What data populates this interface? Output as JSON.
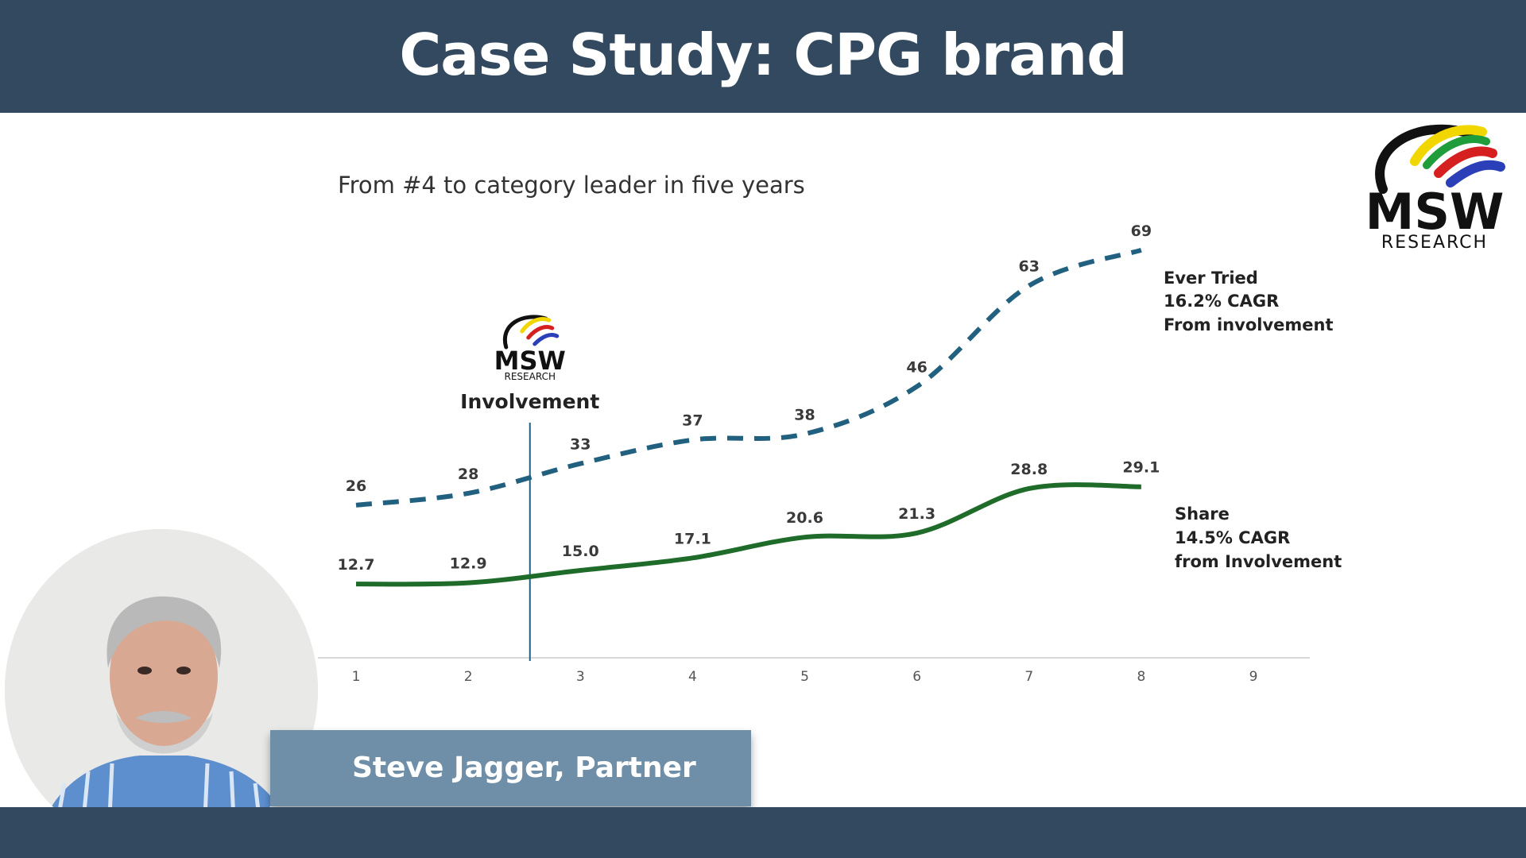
{
  "header": {
    "title": "Case Study: CPG brand"
  },
  "subtitle": "From #4 to category leader in five years",
  "logo": {
    "line1": "MSW",
    "line2": "RESEARCH"
  },
  "presenter": {
    "name": "Steve Jagger, Partner"
  },
  "colors": {
    "header_bg": "#32495f",
    "ever_tried": "#21607f",
    "share": "#1e6b2a",
    "name_plate": "#6f8ea8",
    "marker": "#21607f"
  },
  "chart_data": {
    "type": "line",
    "x": [
      1,
      2,
      3,
      4,
      5,
      6,
      7,
      8
    ],
    "x_ticks": [
      "1",
      "2",
      "3",
      "4",
      "5",
      "6",
      "7",
      "8",
      "9"
    ],
    "xlim": [
      1,
      9
    ],
    "ylim": [
      0,
      75
    ],
    "grid": false,
    "series": [
      {
        "name": "Ever Tried",
        "style": "dashed",
        "values": [
          26,
          28,
          33,
          37,
          38,
          46,
          63,
          69
        ],
        "labels": [
          "26",
          "28",
          "33",
          "37",
          "38",
          "46",
          "63",
          "69"
        ],
        "annotation": [
          "Ever Tried",
          "16.2% CAGR",
          "From involvement"
        ]
      },
      {
        "name": "Share",
        "style": "solid",
        "values": [
          12.7,
          12.9,
          15.0,
          17.1,
          20.6,
          21.3,
          28.8,
          29.1
        ],
        "labels": [
          "12.7",
          "12.9",
          "15.0",
          "17.1",
          "20.6",
          "21.3",
          "28.8",
          "29.1"
        ],
        "annotation": [
          "Share",
          "14.5% CAGR",
          "from Involvement"
        ]
      }
    ],
    "marker": {
      "x": 2.55,
      "label": "Involvement",
      "logo_line1": "MSW",
      "logo_line2": "RESEARCH"
    }
  }
}
